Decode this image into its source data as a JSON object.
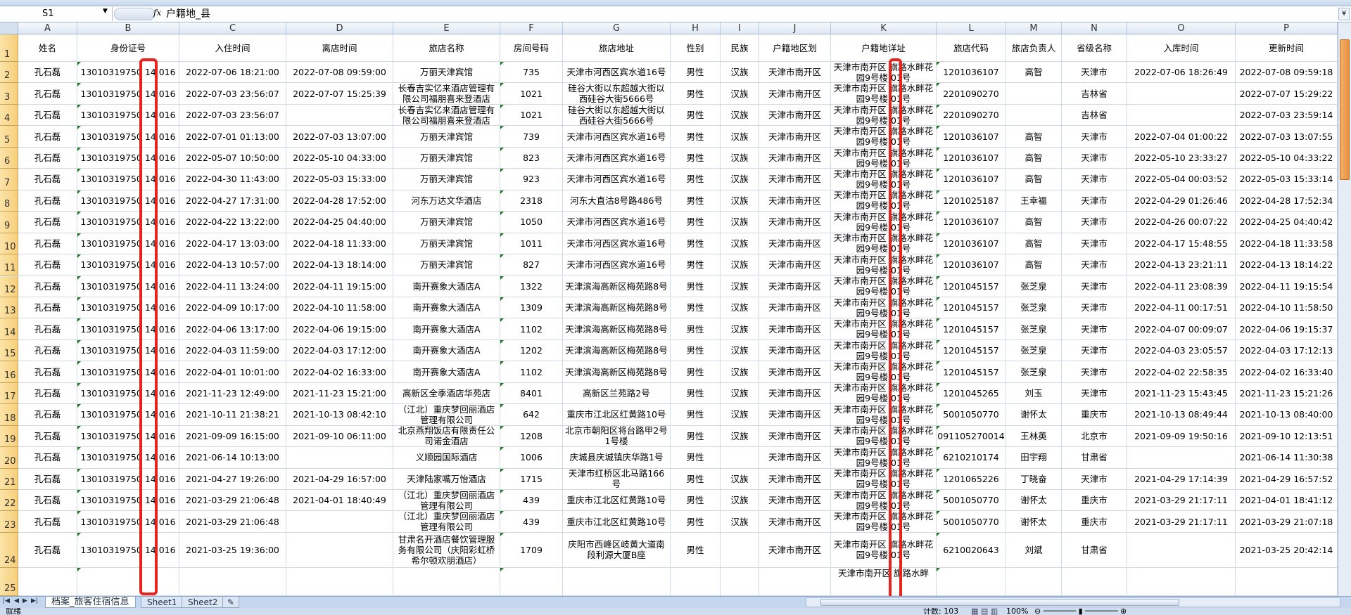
{
  "formula_bar": {
    "name_box": "S1",
    "formula": "户籍地_县"
  },
  "columns": [
    "A",
    "B",
    "C",
    "D",
    "E",
    "F",
    "G",
    "H",
    "I",
    "J",
    "K",
    "L",
    "M",
    "N",
    "O",
    "P"
  ],
  "headers": [
    "姓名",
    "身份证号",
    "入住时间",
    "离店时间",
    "旅店名称",
    "房间号码",
    "旅店地址",
    "性别",
    "民族",
    "户籍地区划",
    "户籍地详址",
    "旅店代码",
    "旅店负责人",
    "省级名称",
    "入库时间",
    "更新时间"
  ],
  "rows": [
    [
      "孔石磊",
      "13010319750 14 016",
      "2022-07-06 18:21:00",
      "2022-07-08 09:59:00",
      "万丽天津宾馆",
      "735",
      "天津市河西区宾水道16号",
      "男性",
      "汉族",
      "天津市南开区",
      "天津市南开区 旗路水畔花园9号楼 01号",
      "1201036107",
      "高智",
      "天津市",
      "2022-07-06 18:26:49",
      "2022-07-08 09:59:18"
    ],
    [
      "孔石磊",
      "13010319750 14 016",
      "2022-07-03 23:56:07",
      "2022-07-07 15:25:39",
      "长春吉实亿来酒店管理有限公司福朋喜来登酒店",
      "1021",
      "硅谷大街以东超越大街以西硅谷大街5666号",
      "男性",
      "汉族",
      "天津市南开区",
      "天津市南开区 旗路水畔花园9号楼 01号",
      "2201090270",
      "",
      "吉林省",
      "",
      "2022-07-07 15:29:22"
    ],
    [
      "孔石磊",
      "13010319750 14 016",
      "2022-07-03 23:56:07",
      "",
      "长春吉实亿来酒店管理有限公司福朋喜来登酒店",
      "1021",
      "硅谷大街以东超越大街以西硅谷大街5666号",
      "男性",
      "汉族",
      "天津市南开区",
      "天津市南开区 旗路水畔花园9号楼 01号",
      "2201090270",
      "",
      "吉林省",
      "",
      "2022-07-03 23:59:14"
    ],
    [
      "孔石磊",
      "13010319750 14 016",
      "2022-07-01 01:13:00",
      "2022-07-03 13:07:00",
      "万丽天津宾馆",
      "739",
      "天津市河西区宾水道16号",
      "男性",
      "汉族",
      "天津市南开区",
      "天津市南开区 旗路水畔花园9号楼 01号",
      "1201036107",
      "高智",
      "天津市",
      "2022-07-04 01:00:22",
      "2022-07-03 13:07:55"
    ],
    [
      "孔石磊",
      "13010319750 14 016",
      "2022-05-07 10:50:00",
      "2022-05-10 04:33:00",
      "万丽天津宾馆",
      "823",
      "天津市河西区宾水道16号",
      "男性",
      "汉族",
      "天津市南开区",
      "天津市南开区 旗路水畔花园9号楼 01号",
      "1201036107",
      "高智",
      "天津市",
      "2022-05-10 23:33:27",
      "2022-05-10 04:33:22"
    ],
    [
      "孔石磊",
      "13010319750 14 016",
      "2022-04-30 11:43:00",
      "2022-05-03 15:33:00",
      "万丽天津宾馆",
      "923",
      "天津市河西区宾水道16号",
      "男性",
      "汉族",
      "天津市南开区",
      "天津市南开区 旗路水畔花园9号楼 01号",
      "1201036107",
      "高智",
      "天津市",
      "2022-05-04 00:03:52",
      "2022-05-03 15:33:14"
    ],
    [
      "孔石磊",
      "13010319750 14 016",
      "2022-04-27 17:31:00",
      "2022-04-28 17:52:00",
      "河东万达文华酒店",
      "2318",
      "河东大直沽8号路486号",
      "男性",
      "汉族",
      "天津市南开区",
      "天津市南开区 旗路水畔花园9号楼 01号",
      "1201025187",
      "王幸福",
      "天津市",
      "2022-04-29 01:26:46",
      "2022-04-28 17:52:34"
    ],
    [
      "孔石磊",
      "13010319750 14 016",
      "2022-04-22 13:22:00",
      "2022-04-25 04:40:00",
      "万丽天津宾馆",
      "1050",
      "天津市河西区宾水道16号",
      "男性",
      "汉族",
      "天津市南开区",
      "天津市南开区 旗路水畔花园9号楼 01号",
      "1201036107",
      "高智",
      "天津市",
      "2022-04-26 00:07:22",
      "2022-04-25 04:40:42"
    ],
    [
      "孔石磊",
      "13010319750 14 016",
      "2022-04-17 13:03:00",
      "2022-04-18 11:33:00",
      "万丽天津宾馆",
      "1011",
      "天津市河西区宾水道16号",
      "男性",
      "汉族",
      "天津市南开区",
      "天津市南开区 旗路水畔花园9号楼 01号",
      "1201036107",
      "高智",
      "天津市",
      "2022-04-17 15:48:55",
      "2022-04-18 11:33:58"
    ],
    [
      "孔石磊",
      "13010319750 14 016",
      "2022-04-13 10:57:00",
      "2022-04-13 18:14:00",
      "万丽天津宾馆",
      "827",
      "天津市河西区宾水道16号",
      "男性",
      "汉族",
      "天津市南开区",
      "天津市南开区 旗路水畔花园9号楼 01号",
      "1201036107",
      "高智",
      "天津市",
      "2022-04-13 23:21:11",
      "2022-04-13 18:14:22"
    ],
    [
      "孔石磊",
      "13010319750 14 016",
      "2022-04-11 13:24:00",
      "2022-04-11 19:15:00",
      "南开赛象大酒店A",
      "1322",
      "天津滨海高新区梅苑路8号",
      "男性",
      "汉族",
      "天津市南开区",
      "天津市南开区 旗路水畔花园9号楼 01号",
      "1201045157",
      "张芝泉",
      "天津市",
      "2022-04-11 23:08:39",
      "2022-04-11 19:15:54"
    ],
    [
      "孔石磊",
      "13010319750 14 016",
      "2022-04-09 10:17:00",
      "2022-04-10 11:58:00",
      "南开赛象大酒店A",
      "1309",
      "天津滨海高新区梅苑路8号",
      "男性",
      "汉族",
      "天津市南开区",
      "天津市南开区 旗路水畔花园9号楼 01号",
      "1201045157",
      "张芝泉",
      "天津市",
      "2022-04-11 00:17:51",
      "2022-04-10 11:58:50"
    ],
    [
      "孔石磊",
      "13010319750 14 016",
      "2022-04-06 13:17:00",
      "2022-04-06 19:15:00",
      "南开赛象大酒店A",
      "1102",
      "天津滨海高新区梅苑路8号",
      "男性",
      "汉族",
      "天津市南开区",
      "天津市南开区 旗路水畔花园9号楼 01号",
      "1201045157",
      "张芝泉",
      "天津市",
      "2022-04-07 00:09:07",
      "2022-04-06 19:15:37"
    ],
    [
      "孔石磊",
      "13010319750 14 016",
      "2022-04-03 11:59:00",
      "2022-04-03 17:12:00",
      "南开赛象大酒店A",
      "1202",
      "天津滨海高新区梅苑路8号",
      "男性",
      "汉族",
      "天津市南开区",
      "天津市南开区 旗路水畔花园9号楼 01号",
      "1201045157",
      "张芝泉",
      "天津市",
      "2022-04-03 23:05:57",
      "2022-04-03 17:12:13"
    ],
    [
      "孔石磊",
      "13010319750 14 016",
      "2022-04-01 10:01:00",
      "2022-04-02 16:33:00",
      "南开赛象大酒店A",
      "1102",
      "天津滨海高新区梅苑路8号",
      "男性",
      "汉族",
      "天津市南开区",
      "天津市南开区 旗路水畔花园9号楼 01号",
      "1201045157",
      "张芝泉",
      "天津市",
      "2022-04-02 22:58:35",
      "2022-04-02 16:33:40"
    ],
    [
      "孔石磊",
      "13010319750 14 016",
      "2021-11-23 12:49:00",
      "2021-11-23 15:21:00",
      "高新区全季酒店华苑店",
      "8401",
      "高新区兰苑路2号",
      "男性",
      "汉族",
      "天津市南开区",
      "天津市南开区 旗路水畔花园9号楼 01号",
      "1201045265",
      "刘玉",
      "天津市",
      "2021-11-23 15:43:45",
      "2021-11-23 15:21:26"
    ],
    [
      "孔石磊",
      "13010319750 14 016",
      "2021-10-11 21:38:21",
      "2021-10-13 08:42:10",
      "（江北）重庆梦回丽酒店管理有限公司",
      "642",
      "重庆市江北区红黄路10号",
      "男性",
      "汉族",
      "天津市南开区",
      "天津市南开区 旗路水畔花园9号楼 01号",
      "5001050770",
      "谢怀太",
      "重庆市",
      "2021-10-13 08:49:44",
      "2021-10-13 08:40:00"
    ],
    [
      "孔石磊",
      "13010319750 14 016",
      "2021-09-09 16:15:00",
      "2021-09-10 06:11:00",
      "北京燕翔饭店有限责任公司诺金酒店",
      "1208",
      "北京市朝阳区将台路甲2号1号楼",
      "男性",
      "汉族",
      "天津市南开区",
      "天津市南开区 旗路水畔花园9号楼 01号",
      "091105270014",
      "王林英",
      "北京市",
      "2021-09-09 19:50:16",
      "2021-09-10 12:13:51"
    ],
    [
      "孔石磊",
      "13010319750 14 016",
      "2021-06-14 10:13:00",
      "",
      "义顺园国际酒店",
      "1006",
      "庆城县庆城镇庆华路1号",
      "男性",
      "",
      "天津市南开区",
      "天津市南开区 旗路水畔花园9号楼 01号",
      "6210210174",
      "田宇翔",
      "甘肃省",
      "",
      "2021-06-14 11:30:38"
    ],
    [
      "孔石磊",
      "13010319750 14 016",
      "2021-04-27 19:26:00",
      "2021-04-29 16:57:00",
      "天津陆家嘴万怡酒店",
      "1715",
      "天津市红桥区北马路166号",
      "男性",
      "汉族",
      "天津市南开区",
      "天津市南开区 旗路水畔花园9号楼 01号",
      "1201065226",
      "丁晓奋",
      "天津市",
      "2021-04-29 17:14:39",
      "2021-04-29 16:57:52"
    ],
    [
      "孔石磊",
      "13010319750 14 016",
      "2021-03-29 21:06:48",
      "2021-04-01 18:40:49",
      "（江北）重庆梦回丽酒店管理有限公司",
      "439",
      "重庆市江北区红黄路10号",
      "男性",
      "汉族",
      "天津市南开区",
      "天津市南开区 旗路水畔花园9号楼 01号",
      "5001050770",
      "谢怀太",
      "重庆市",
      "2021-03-29 21:17:11",
      "2021-04-01 18:41:12"
    ],
    [
      "孔石磊",
      "13010319750 14 016",
      "2021-03-29 21:06:48",
      "",
      "（江北）重庆梦回丽酒店管理有限公司",
      "439",
      "重庆市江北区红黄路10号",
      "男性",
      "汉族",
      "天津市南开区",
      "天津市南开区 旗路水畔花园9号楼 01号",
      "5001050770",
      "谢怀太",
      "重庆市",
      "2021-03-29 21:17:11",
      "2021-03-29 21:07:18"
    ],
    [
      "孔石磊",
      "13010319750 14 016",
      "2021-03-25 19:36:00",
      "",
      "甘肃名开酒店餐饮管理服务有限公司（庆阳彩虹桥希尔顿欢朋酒店）",
      "1709",
      "庆阳市西峰区岐黄大道南段利源大厦B座",
      "男性",
      "",
      "天津市南开区",
      "天津市南开区 旗路水畔花园9号楼 01号",
      "6210020643",
      "刘斌",
      "甘肃省",
      "",
      "2021-03-25 20:42:14"
    ],
    [
      "",
      "",
      "",
      "",
      "",
      "",
      "",
      "",
      "",
      "",
      "天津市南开区 旗路水畔",
      "",
      "",
      "",
      "",
      ""
    ]
  ],
  "sheet_tabs": [
    "档案_旅客住宿信息",
    "Sheet1",
    "Sheet2"
  ],
  "active_tab": "档案_旅客住宿信息",
  "status": {
    "ready": "就绪",
    "count": "计数: 103",
    "zoom": "100%"
  },
  "colors": {
    "highlight_box": "#e8231c",
    "row_header": "#f7cf7c",
    "text_number_marker": "#1a7a1a"
  }
}
